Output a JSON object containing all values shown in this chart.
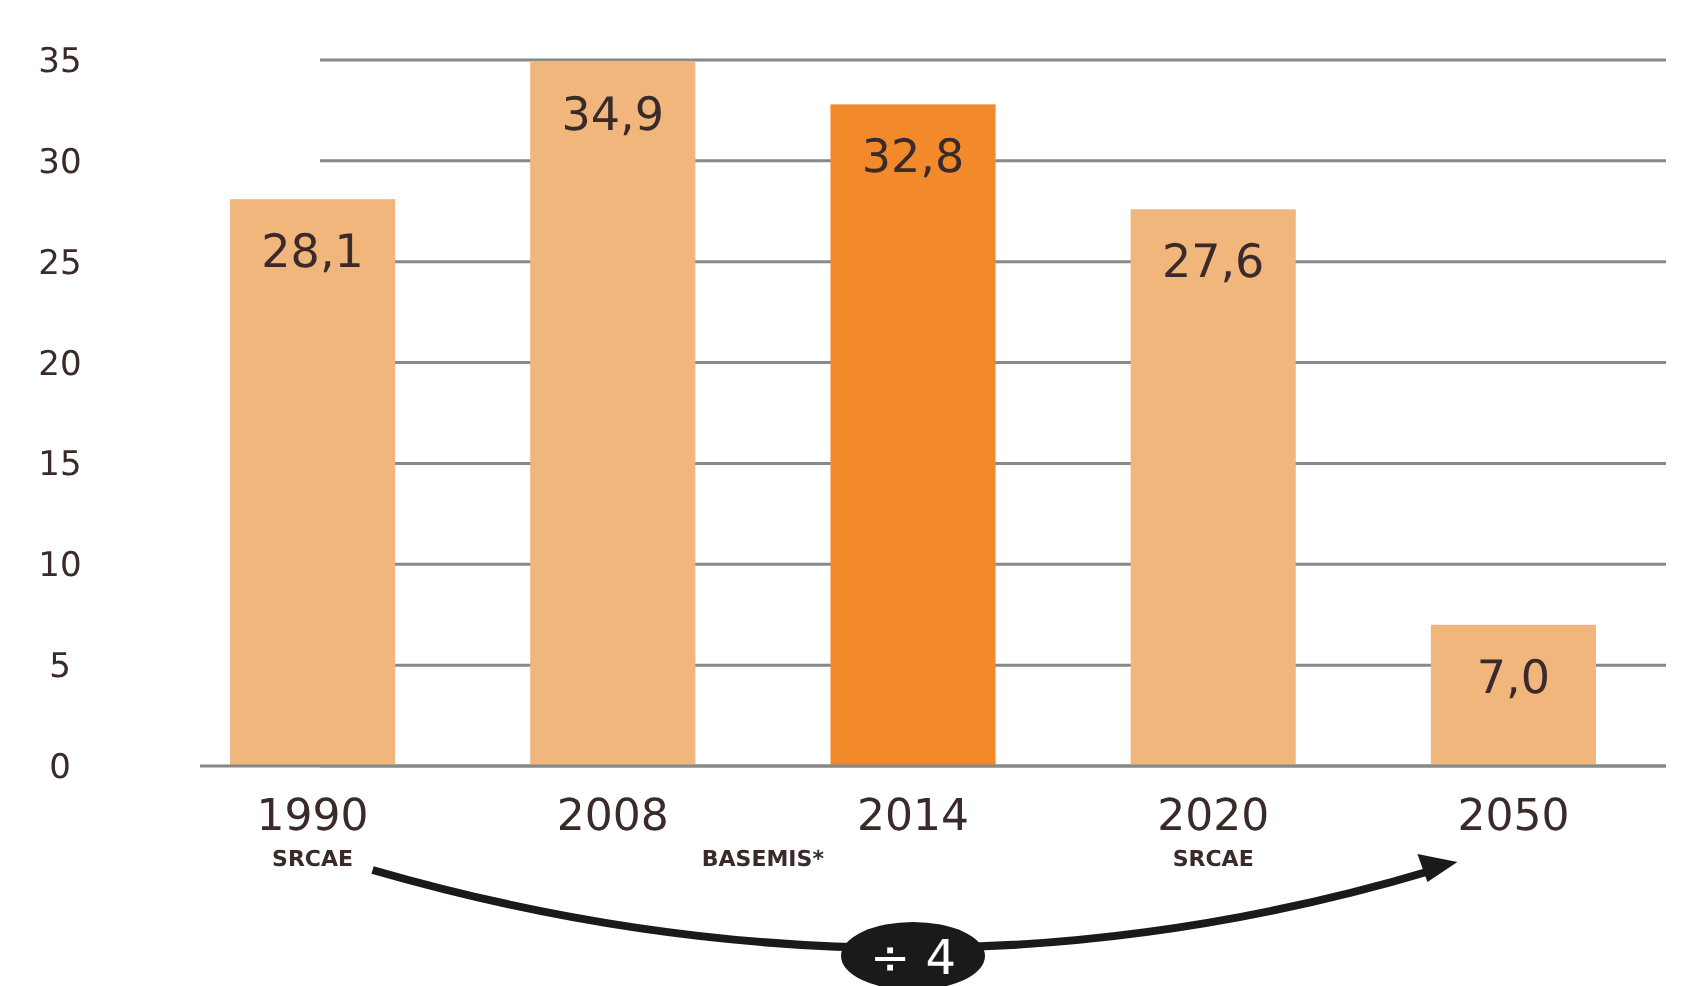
{
  "chart_data": {
    "type": "bar",
    "categories": [
      "1990",
      "2008",
      "2014",
      "2020",
      "2050"
    ],
    "values": [
      28.1,
      34.9,
      32.8,
      27.6,
      7.0
    ],
    "colors": [
      "#f0b67c",
      "#f0b67c",
      "#f28a2c",
      "#f0b67c",
      "#f0b67c"
    ],
    "value_labels": [
      "28,1",
      "34,9",
      "32,8",
      "27,6",
      "7,0"
    ],
    "ylim": [
      0,
      35
    ],
    "yticks": [
      0,
      5,
      10,
      15,
      20,
      25,
      30,
      35
    ],
    "grid": "y",
    "annotations": [
      "SRCAE",
      "BASEMIS*",
      "SRCAE",
      "÷ 4"
    ]
  }
}
